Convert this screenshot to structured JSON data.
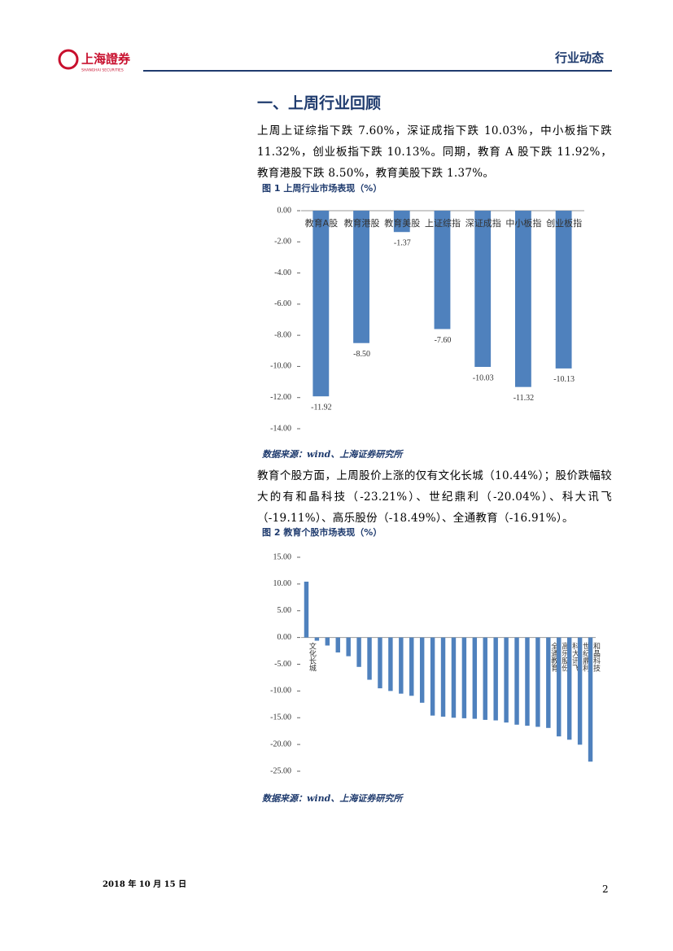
{
  "header": {
    "logo_text": "上海證券",
    "logo_sub": "SHANGHAI SECURITIES",
    "section": "行业动态"
  },
  "section_title": "一、上周行业回顾",
  "paragraphs": [
    "上周上证综指下跌 7.60%，深证成指下跌 10.03%，中小板指下跌 11.32%，创业板指下跌 10.13%。同期，教育 A 股下跌 11.92%，教育港股下跌 8.50%，教育美股下跌 1.37%。",
    "教育个股方面，上周股价上涨的仅有文化长城（10.44%）；股价跌幅较大的有和晶科技（-23.21%）、世纪鼎利（-20.04%）、科大讯飞（-19.11%）、高乐股份（-18.49%）、全通教育（-16.91%）。"
  ],
  "chart_data": [
    {
      "type": "bar",
      "title": "图 1  上周行业市场表现（%）",
      "source": "数据来源：wind、上海证券研究所",
      "categories": [
        "教育A股",
        "教育港股",
        "教育美股",
        "上证综指",
        "深证成指",
        "中小板指",
        "创业板指"
      ],
      "values": [
        -11.92,
        -8.5,
        -1.37,
        -7.6,
        -10.03,
        -11.32,
        -10.13
      ],
      "value_labels": [
        "-11.92",
        "-8.50",
        "-1.37",
        "-7.60",
        "-10.03",
        "-11.32",
        "-10.13"
      ],
      "color": "#4f81bd",
      "ylim": [
        -14,
        0
      ],
      "yticks": [
        {
          "value": 0,
          "label": "0.00"
        },
        {
          "value": -2,
          "label": "-2.00"
        },
        {
          "value": -4,
          "label": "-4.00"
        },
        {
          "value": -6,
          "label": "-6.00"
        },
        {
          "value": -8,
          "label": "-8.00"
        },
        {
          "value": -10,
          "label": "-10.00"
        },
        {
          "value": -12,
          "label": "-12.00"
        },
        {
          "value": -14,
          "label": "-14.00"
        }
      ],
      "grid": false
    },
    {
      "type": "bar",
      "title": "图 2  教育个股市场表现（%）",
      "source": "数据来源：wind、上海证券研究所",
      "categories": [
        "文化长城",
        null,
        null,
        null,
        null,
        null,
        null,
        null,
        null,
        null,
        null,
        null,
        null,
        null,
        null,
        null,
        null,
        null,
        null,
        null,
        null,
        null,
        null,
        "全通教育",
        "高乐股份",
        "科大讯飞",
        "世纪鼎利",
        "和晶科技"
      ],
      "values": [
        10.44,
        -0.6,
        -1.5,
        -2.8,
        -3.5,
        -5.5,
        -7.9,
        -9.5,
        -10.0,
        -10.5,
        -10.9,
        -12.2,
        -14.6,
        -14.8,
        -15.0,
        -15.1,
        -15.2,
        -15.4,
        -15.5,
        -15.9,
        -16.3,
        -16.5,
        -16.7,
        -16.91,
        -18.49,
        -19.11,
        -20.04,
        -23.21
      ],
      "color": "#4f81bd",
      "ylim": [
        -25,
        15
      ],
      "yticks": [
        {
          "value": 15,
          "label": "15.00"
        },
        {
          "value": 10,
          "label": "10.00"
        },
        {
          "value": 5,
          "label": "5.00"
        },
        {
          "value": 0,
          "label": "0.00"
        },
        {
          "value": -5,
          "label": "-5.00"
        },
        {
          "value": -10,
          "label": "-10.00"
        },
        {
          "value": -15,
          "label": "-15.00"
        },
        {
          "value": -20,
          "label": "-20.00"
        },
        {
          "value": -25,
          "label": "-25.00"
        }
      ],
      "grid": false
    }
  ],
  "footer": {
    "date": "2018 年 10 月 15 日",
    "page": "2"
  }
}
